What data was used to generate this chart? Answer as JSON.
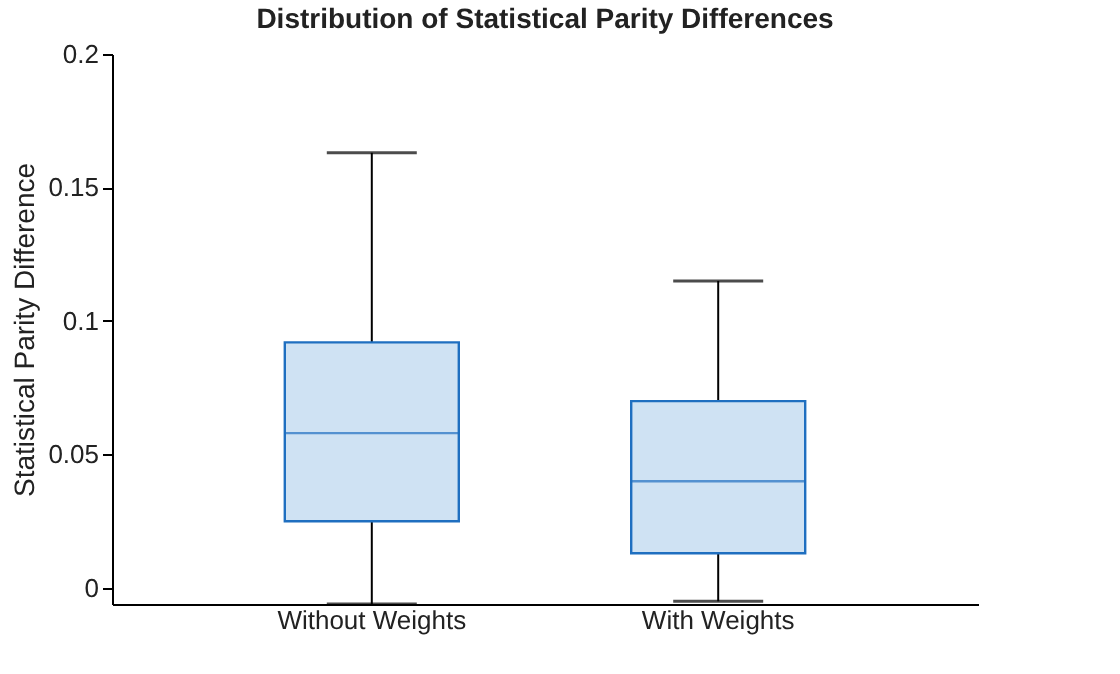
{
  "chart_data": {
    "type": "box",
    "title": "Distribution of Statistical Parity Differences",
    "ylabel": "Statistical Parity Difference",
    "categories": [
      "Without Weights",
      "With Weights"
    ],
    "boxes": [
      {
        "low": -0.006,
        "q1": 0.025,
        "median": 0.058,
        "q3": 0.092,
        "high": 0.163
      },
      {
        "low": -0.005,
        "q1": 0.013,
        "median": 0.04,
        "q3": 0.07,
        "high": 0.115
      }
    ],
    "color": "#cfe2f3",
    "ylim": [
      -0.006,
      0.2
    ],
    "yticks": [
      0,
      0.05,
      0.1,
      0.15,
      0.2
    ],
    "grid": false
  }
}
